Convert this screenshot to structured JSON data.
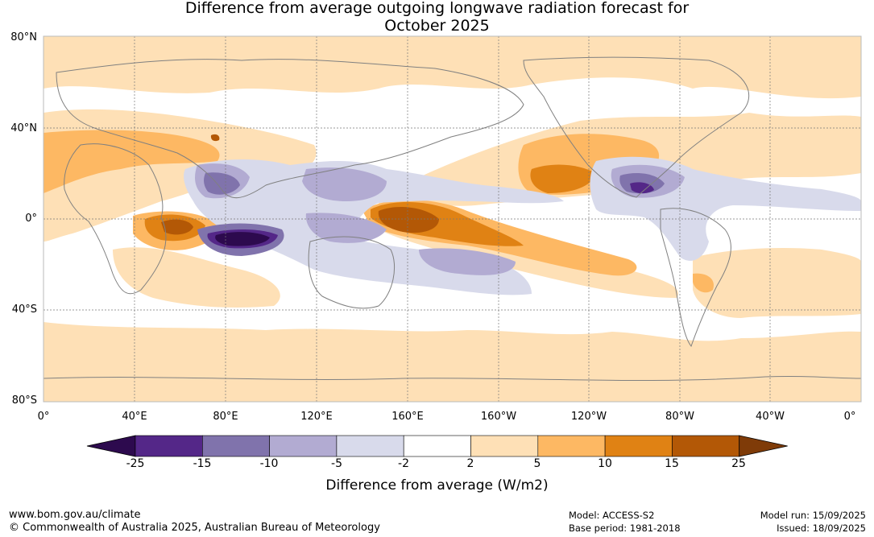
{
  "title": {
    "line1": "Difference from average outgoing longwave radiation forecast for",
    "line2": "October 2025"
  },
  "map": {
    "lat_labels": [
      "80°N",
      "40°N",
      "0°",
      "40°S",
      "80°S"
    ],
    "lon_labels": [
      "0°",
      "40°E",
      "80°E",
      "120°E",
      "160°E",
      "160°W",
      "120°W",
      "80°W",
      "40°W",
      "0°"
    ]
  },
  "colorbar": {
    "ticks": [
      "-25",
      "-15",
      "-10",
      "-5",
      "-2",
      "2",
      "5",
      "10",
      "15",
      "25"
    ],
    "colors": [
      "#2d0a4e",
      "#542788",
      "#8073ac",
      "#b2abd2",
      "#d8daeb",
      "#ffffff",
      "#fee0b6",
      "#fdb863",
      "#e08214",
      "#b35806",
      "#7f3b08"
    ],
    "label": "Difference from average (W/m2)"
  },
  "footer": {
    "website": "www.bom.gov.au/climate",
    "copyright": "© Commonwealth of Australia 2025, Australian Bureau of Meteorology",
    "model": "Model: ACCESS-S2",
    "base_period": "Base period: 1981-2018",
    "model_run": "Model run: 15/09/2025",
    "issued": "Issued: 18/09/2025"
  }
}
